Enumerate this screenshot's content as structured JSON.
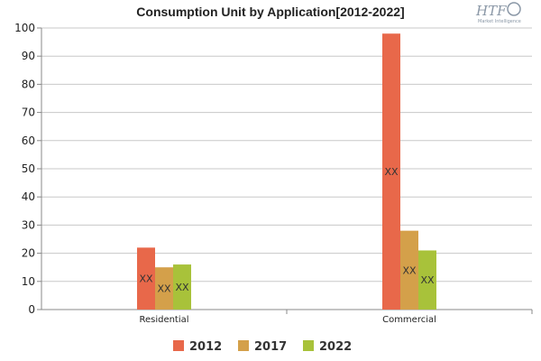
{
  "chart_data": {
    "type": "bar",
    "title": "Consumption Unit by  Application[2012-2022]",
    "categories": [
      "Residential",
      "Commercial"
    ],
    "series": [
      {
        "name": "2012",
        "color": "#e8684a",
        "values": [
          22,
          98
        ],
        "labels": [
          "XX",
          "XX"
        ]
      },
      {
        "name": "2017",
        "color": "#d4a04a",
        "values": [
          15,
          28
        ],
        "labels": [
          "XX",
          "XX"
        ]
      },
      {
        "name": "2022",
        "color": "#a8c23a",
        "values": [
          16,
          21
        ],
        "labels": [
          "XX",
          "XX"
        ]
      }
    ],
    "ylim": [
      0,
      100
    ],
    "yticks": [
      0,
      10,
      20,
      30,
      40,
      50,
      60,
      70,
      80,
      90,
      100
    ],
    "grid": true,
    "legend": "bottom"
  },
  "logo": {
    "main": "HTF",
    "sub": "Market Intelligence"
  }
}
